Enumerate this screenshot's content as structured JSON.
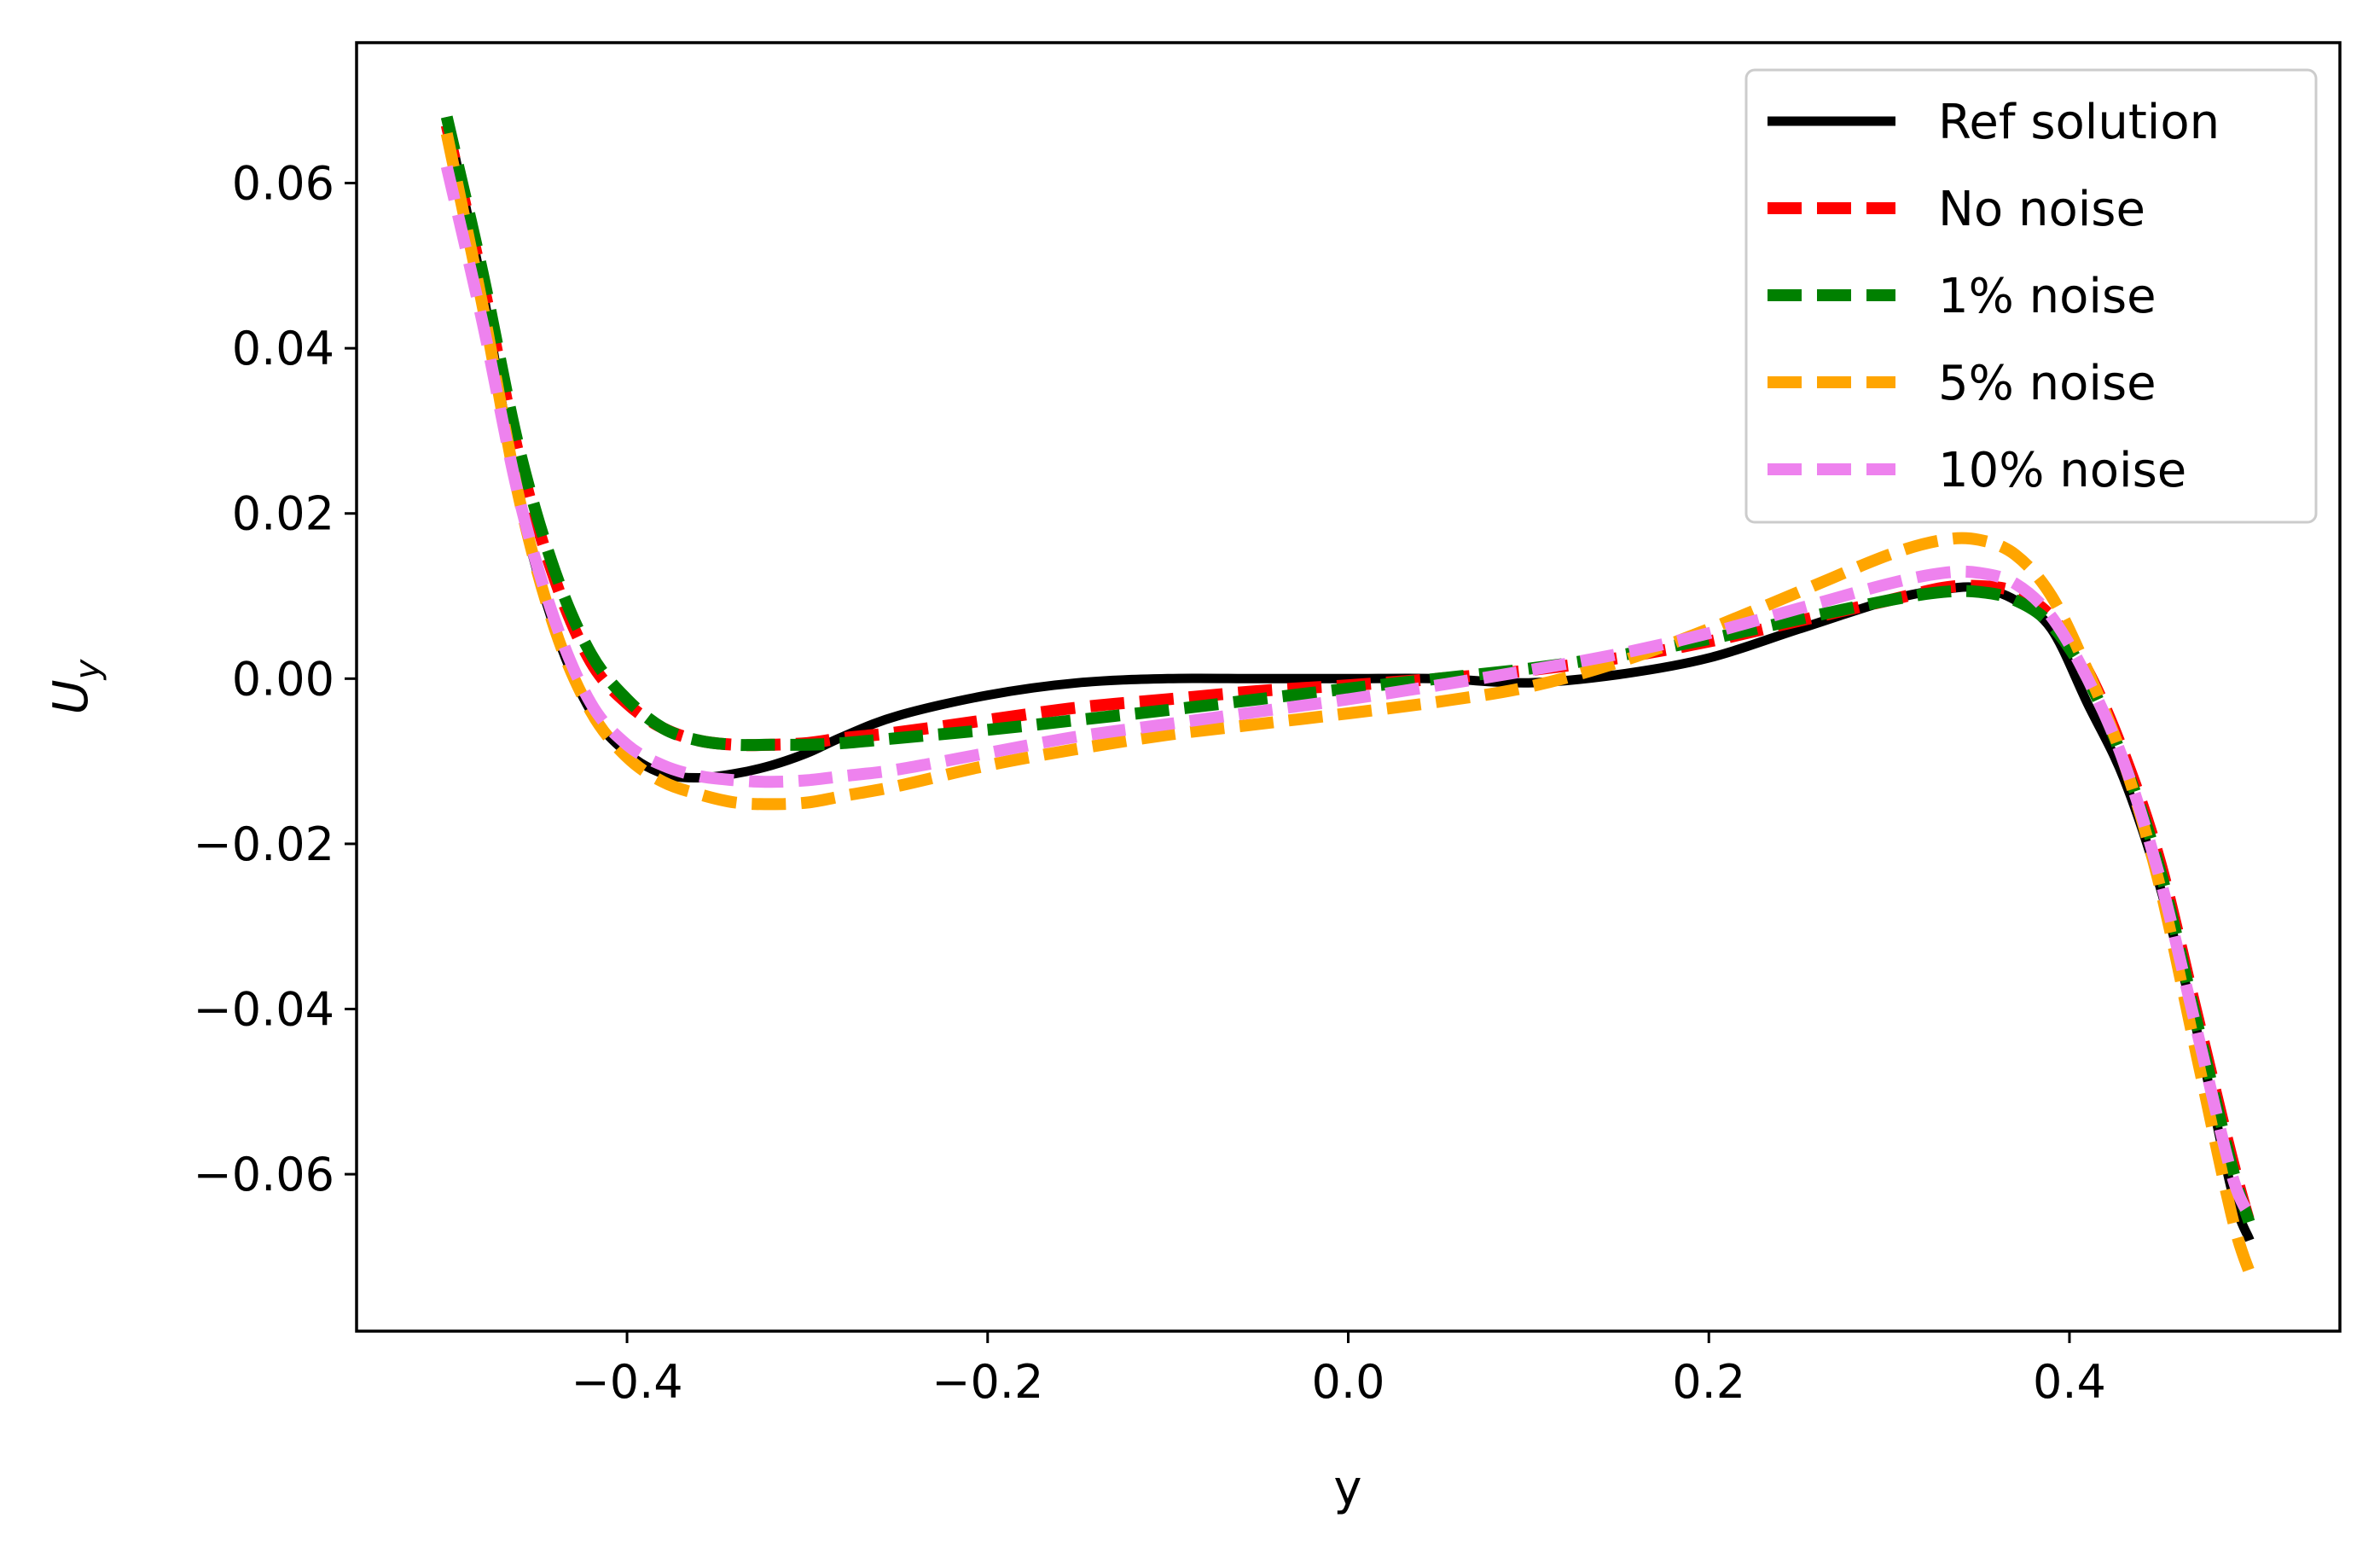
{
  "chart_data": {
    "type": "line",
    "title": "",
    "xlabel": "y",
    "ylabel_main": "U",
    "ylabel_sub": "y",
    "xlim": [
      -0.55,
      0.55
    ],
    "ylim": [
      -0.079,
      0.077
    ],
    "xticks": [
      -0.4,
      -0.2,
      0.0,
      0.2,
      0.4
    ],
    "xtick_labels": [
      "−0.4",
      "−0.2",
      "0.0",
      "0.2",
      "0.4"
    ],
    "yticks": [
      -0.06,
      -0.04,
      -0.02,
      0.0,
      0.02,
      0.04,
      0.06
    ],
    "ytick_labels": [
      "−0.06",
      "−0.04",
      "−0.02",
      "0.00",
      "0.02",
      "0.04",
      "0.06"
    ],
    "grid": false,
    "legend_position": "top-right",
    "series": [
      {
        "name": "Ref solution",
        "color": "#000000",
        "style": "solid",
        "x": [
          -0.5,
          -0.48,
          -0.46,
          -0.44,
          -0.42,
          -0.4,
          -0.38,
          -0.36,
          -0.34,
          -0.32,
          -0.3,
          -0.28,
          -0.25,
          -0.2,
          -0.15,
          -0.1,
          -0.05,
          0.0,
          0.05,
          0.1,
          0.15,
          0.2,
          0.25,
          0.3,
          0.33,
          0.35,
          0.37,
          0.39,
          0.41,
          0.43,
          0.45,
          0.47,
          0.49,
          0.5
        ],
        "y": [
          0.068,
          0.047,
          0.022,
          0.006,
          -0.004,
          -0.009,
          -0.0115,
          -0.012,
          -0.0115,
          -0.0105,
          -0.009,
          -0.007,
          -0.0045,
          -0.002,
          -0.0005,
          0.0,
          0.0,
          0.0,
          0.0,
          -0.0005,
          0.0005,
          0.0025,
          0.006,
          0.0095,
          0.0108,
          0.011,
          0.0095,
          0.006,
          -0.003,
          -0.012,
          -0.025,
          -0.042,
          -0.062,
          -0.068
        ]
      },
      {
        "name": "No noise",
        "color": "#ff0000",
        "style": "dashed",
        "x": [
          -0.5,
          -0.48,
          -0.46,
          -0.44,
          -0.42,
          -0.4,
          -0.38,
          -0.36,
          -0.34,
          -0.32,
          -0.3,
          -0.28,
          -0.25,
          -0.2,
          -0.15,
          -0.1,
          -0.05,
          0.0,
          0.05,
          0.1,
          0.15,
          0.2,
          0.25,
          0.3,
          0.33,
          0.35,
          0.37,
          0.39,
          0.41,
          0.43,
          0.45,
          0.47,
          0.49,
          0.5
        ],
        "y": [
          0.067,
          0.048,
          0.027,
          0.012,
          0.002,
          -0.003,
          -0.006,
          -0.0075,
          -0.008,
          -0.008,
          -0.0078,
          -0.0072,
          -0.0065,
          -0.005,
          -0.0035,
          -0.0025,
          -0.0015,
          -0.0008,
          0.0,
          0.001,
          0.0025,
          0.0045,
          0.007,
          0.0095,
          0.011,
          0.0112,
          0.0105,
          0.0075,
          0.001,
          -0.009,
          -0.022,
          -0.04,
          -0.058,
          -0.066
        ]
      },
      {
        "name": "1% noise",
        "color": "#008000",
        "style": "dashed",
        "x": [
          -0.5,
          -0.48,
          -0.46,
          -0.44,
          -0.42,
          -0.4,
          -0.38,
          -0.36,
          -0.34,
          -0.32,
          -0.3,
          -0.28,
          -0.25,
          -0.2,
          -0.15,
          -0.1,
          -0.05,
          0.0,
          0.05,
          0.1,
          0.15,
          0.2,
          0.25,
          0.3,
          0.33,
          0.35,
          0.37,
          0.39,
          0.41,
          0.43,
          0.45,
          0.47,
          0.49,
          0.5
        ],
        "y": [
          0.068,
          0.049,
          0.028,
          0.013,
          0.003,
          -0.0025,
          -0.006,
          -0.0075,
          -0.008,
          -0.008,
          -0.008,
          -0.0078,
          -0.0072,
          -0.0062,
          -0.005,
          -0.0038,
          -0.0025,
          -0.0012,
          0.0,
          0.0012,
          0.0028,
          0.0048,
          0.0072,
          0.0095,
          0.0105,
          0.0105,
          0.0095,
          0.0065,
          0.0,
          -0.01,
          -0.023,
          -0.041,
          -0.059,
          -0.066
        ]
      },
      {
        "name": "5% noise",
        "color": "#ffa500",
        "style": "dashed",
        "x": [
          -0.5,
          -0.48,
          -0.46,
          -0.44,
          -0.42,
          -0.4,
          -0.38,
          -0.36,
          -0.34,
          -0.32,
          -0.3,
          -0.28,
          -0.25,
          -0.2,
          -0.15,
          -0.1,
          -0.05,
          0.0,
          0.05,
          0.1,
          0.15,
          0.2,
          0.25,
          0.3,
          0.33,
          0.35,
          0.37,
          0.39,
          0.41,
          0.43,
          0.45,
          0.47,
          0.49,
          0.5
        ],
        "y": [
          0.066,
          0.045,
          0.022,
          0.006,
          -0.004,
          -0.0095,
          -0.0125,
          -0.014,
          -0.015,
          -0.0152,
          -0.015,
          -0.0142,
          -0.013,
          -0.0105,
          -0.0085,
          -0.0068,
          -0.0055,
          -0.0042,
          -0.0028,
          -0.001,
          0.002,
          0.006,
          0.0105,
          0.015,
          0.0168,
          0.0168,
          0.015,
          0.01,
          0.001,
          -0.01,
          -0.025,
          -0.045,
          -0.065,
          -0.072
        ]
      },
      {
        "name": "10% noise",
        "color": "#ee82ee",
        "style": "dashed",
        "x": [
          -0.5,
          -0.48,
          -0.46,
          -0.44,
          -0.42,
          -0.4,
          -0.38,
          -0.36,
          -0.34,
          -0.32,
          -0.3,
          -0.28,
          -0.25,
          -0.2,
          -0.15,
          -0.1,
          -0.05,
          0.0,
          0.05,
          0.1,
          0.15,
          0.2,
          0.25,
          0.3,
          0.33,
          0.35,
          0.37,
          0.39,
          0.41,
          0.43,
          0.45,
          0.47,
          0.49,
          0.5
        ],
        "y": [
          0.062,
          0.043,
          0.022,
          0.007,
          -0.003,
          -0.008,
          -0.0105,
          -0.0118,
          -0.0123,
          -0.0125,
          -0.0123,
          -0.0118,
          -0.011,
          -0.009,
          -0.007,
          -0.0055,
          -0.004,
          -0.0025,
          -0.0008,
          0.001,
          0.003,
          0.0055,
          0.0085,
          0.0115,
          0.0128,
          0.0128,
          0.0115,
          0.0075,
          0.0,
          -0.01,
          -0.024,
          -0.042,
          -0.06,
          -0.065
        ]
      }
    ]
  }
}
